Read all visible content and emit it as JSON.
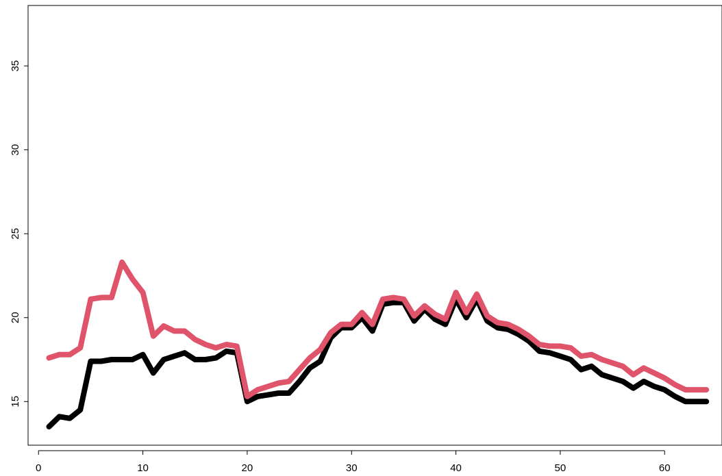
{
  "chart_data": {
    "type": "line",
    "title": "",
    "xlabel": "",
    "ylabel": "",
    "xlim": [
      -1,
      65.5
    ],
    "ylim": [
      12.4,
      38.6
    ],
    "x_ticks": [
      0,
      10,
      20,
      30,
      40,
      50,
      60
    ],
    "y_ticks": [
      15,
      20,
      25,
      30,
      35
    ],
    "x_tick_labels": [
      "0",
      "10",
      "20",
      "30",
      "40",
      "50",
      "60"
    ],
    "y_tick_labels": [
      "15",
      "20",
      "25",
      "30",
      "35"
    ],
    "grid": false,
    "legend": "none",
    "series": [
      {
        "color": "#000000",
        "x": [
          1,
          2,
          3,
          4,
          5,
          6,
          7,
          8,
          9,
          10,
          11,
          12,
          13,
          14,
          15,
          16,
          17,
          18,
          19,
          20,
          21,
          22,
          23,
          24,
          25,
          26,
          27,
          28,
          29,
          30,
          31,
          32,
          33,
          34,
          35,
          36,
          37,
          38,
          39,
          40,
          41,
          42,
          43,
          44,
          45,
          46,
          47,
          48,
          49,
          50,
          51,
          52,
          53,
          54,
          55,
          56,
          57,
          58,
          59,
          60,
          61,
          62,
          63,
          64
        ],
        "values": [
          13.5,
          14.1,
          14.0,
          14.5,
          17.4,
          17.4,
          17.5,
          17.5,
          17.5,
          17.8,
          16.7,
          17.5,
          17.7,
          17.9,
          17.5,
          17.5,
          17.6,
          18.0,
          17.9,
          15.0,
          15.3,
          15.4,
          15.5,
          15.5,
          16.2,
          17.0,
          17.4,
          18.8,
          19.4,
          19.4,
          20.0,
          19.2,
          20.8,
          20.9,
          20.9,
          19.8,
          20.5,
          19.9,
          19.6,
          21.1,
          20.0,
          21.1,
          19.8,
          19.4,
          19.3,
          19.0,
          18.6,
          18.0,
          17.9,
          17.7,
          17.5,
          16.9,
          17.1,
          16.6,
          16.4,
          16.2,
          15.8,
          16.2,
          15.9,
          15.7,
          15.3,
          15.0,
          15.0,
          15.0
        ]
      },
      {
        "color": "#df536b",
        "x": [
          1,
          2,
          3,
          4,
          5,
          6,
          7,
          8,
          9,
          10,
          11,
          12,
          13,
          14,
          15,
          16,
          17,
          18,
          19,
          20,
          21,
          22,
          23,
          24,
          25,
          26,
          27,
          28,
          29,
          30,
          31,
          32,
          33,
          34,
          35,
          36,
          37,
          38,
          39,
          40,
          41,
          42,
          43,
          44,
          45,
          46,
          47,
          48,
          49,
          50,
          51,
          52,
          53,
          54,
          55,
          56,
          57,
          58,
          59,
          60,
          61,
          62,
          63,
          64
        ],
        "values": [
          17.6,
          17.8,
          17.8,
          18.2,
          21.1,
          21.2,
          21.2,
          23.3,
          22.3,
          21.5,
          18.9,
          19.5,
          19.2,
          19.2,
          18.7,
          18.4,
          18.2,
          18.4,
          18.3,
          15.3,
          15.7,
          15.9,
          16.1,
          16.2,
          16.9,
          17.6,
          18.1,
          19.1,
          19.6,
          19.6,
          20.3,
          19.6,
          21.1,
          21.2,
          21.1,
          20.1,
          20.7,
          20.2,
          19.9,
          21.5,
          20.3,
          21.4,
          20.1,
          19.7,
          19.6,
          19.3,
          18.9,
          18.4,
          18.3,
          18.3,
          18.2,
          17.7,
          17.8,
          17.5,
          17.3,
          17.1,
          16.6,
          17.0,
          16.7,
          16.4,
          16.0,
          15.7,
          15.7,
          15.7
        ]
      }
    ]
  }
}
